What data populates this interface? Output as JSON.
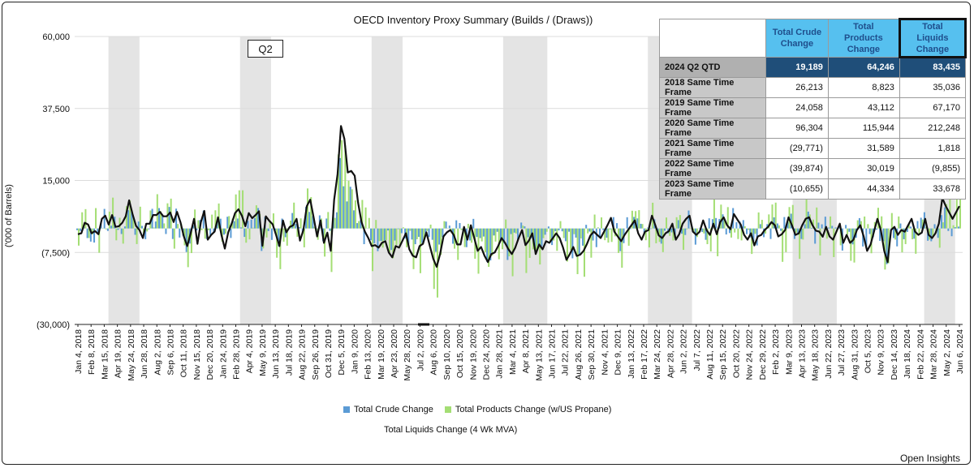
{
  "chart_data": {
    "type": "bar",
    "title": "OECD Inventory Proxy Summary (Builds / (Draws))",
    "ylabel": "('000 of Barrels)",
    "ylim": [
      -30000,
      60000
    ],
    "yticks": [
      -30000,
      -7500,
      15000,
      37500,
      60000
    ],
    "ytick_labels": [
      "(30,000)",
      "(7,500)",
      "15,000",
      "37,500",
      "60,000"
    ],
    "xtick_labels": [
      "Jan 4, 2018",
      "Feb 8, 2018",
      "Mar 15, 2018",
      "Apr 19, 2018",
      "May 24, 2018",
      "Jun 28, 2018",
      "Aug 2, 2018",
      "Sep 6, 2018",
      "Oct 11, 2018",
      "Nov 15, 2018",
      "Dec 20, 2018",
      "Jan 24, 2019",
      "Feb 28, 2019",
      "Apr 4, 2019",
      "May 9, 2019",
      "Jun 13, 2019",
      "Jul 18, 2019",
      "Aug 22, 2019",
      "Sep 26, 2019",
      "Oct 31, 2019",
      "Dec 5, 2019",
      "Jan 9, 2020",
      "Feb 13, 2020",
      "Mar 19, 2020",
      "Apr 23, 2020",
      "May 28, 2020",
      "Jul 2, 2020",
      "Aug 6, 2020",
      "Sep 10, 2020",
      "Oct 15, 2020",
      "Nov 19, 2020",
      "Dec 24, 2020",
      "Jan 28, 2021",
      "Mar 4, 2021",
      "Apr 8, 2021",
      "May 13, 2021",
      "Jun 17, 2021",
      "Jul 22, 2021",
      "Aug 26, 2021",
      "Sep 30, 2021",
      "Nov 4, 2021",
      "Dec 9, 2021",
      "Jan 13, 2022",
      "Feb 17, 2022",
      "Mar 24, 2022",
      "Apr 28, 2022",
      "Jun 2, 2022",
      "Jul 7, 2022",
      "Aug 11, 2022",
      "Sep 15, 2022",
      "Oct 20, 2022",
      "Nov 24, 2022",
      "Dec 29, 2022",
      "Feb 2, 2023",
      "Mar 9, 2023",
      "Apr 13, 2023",
      "May 18, 2023",
      "Jun 22, 2023",
      "Jul 27, 2023",
      "Aug 31, 2023",
      "Oct 5, 2023",
      "Nov 9, 2023",
      "Dec 14, 2023",
      "Jan 18, 2024",
      "Feb 22, 2024",
      "Mar 28, 2024",
      "May 2, 2024",
      "Jun 6, 2024"
    ],
    "q2_shading_label_indices": [
      [
        3,
        4
      ],
      [
        13,
        14
      ],
      [
        23,
        24
      ],
      [
        33,
        35
      ],
      [
        44,
        46
      ],
      [
        55,
        57
      ],
      [
        65,
        66
      ]
    ],
    "annotation": "Q2",
    "series": [
      {
        "name": "Total Crude Change",
        "color": "#5b9bd5",
        "approx_range": [
          -20000,
          22000
        ]
      },
      {
        "name": "Total Products Change (w/US Propane)",
        "color": "#a4de74",
        "approx_range": [
          -27000,
          40000
        ]
      },
      {
        "name": "Total Liquids Change (4 Wk MVA)",
        "color": "#111111",
        "values": [
          -1800,
          -1500,
          1800,
          1200,
          -1500,
          -800,
          -1800,
          3000,
          4000,
          1200,
          4200,
          500,
          700,
          1800,
          3800,
          8800,
          4500,
          800,
          -500,
          -3000,
          1500,
          1500,
          4200,
          4200,
          5200,
          3800,
          3800,
          5000,
          2000,
          5200,
          2000,
          -2500,
          -5500,
          -1500,
          3000,
          -4800,
          2000,
          5500,
          -3500,
          -2000,
          -1000,
          3500,
          -2000,
          -6300,
          -1200,
          1500,
          4800,
          6000,
          4000,
          700,
          4800,
          3200,
          4200,
          5400,
          -5400,
          3800,
          2400,
          1300,
          -2000,
          -5500,
          2500,
          -1200,
          500,
          1000,
          3000,
          -3800,
          -500,
          7000,
          9000,
          3500,
          -2500,
          2500,
          -4500,
          -1300,
          -7000,
          9000,
          17000,
          32000,
          28000,
          17500,
          18000,
          16500,
          8000,
          2000,
          -1000,
          -3000,
          -5500,
          -5200,
          -6000,
          -4500,
          -4000,
          -7500,
          -9000,
          -5500,
          -6000,
          -3800,
          -1500,
          -6500,
          -8500,
          -9000,
          -5500,
          -4800,
          -1200,
          -5500,
          -9500,
          -12000,
          -8000,
          -2500,
          -1200,
          -500,
          -2000,
          -5000,
          -5000,
          500,
          -3500,
          1000,
          -3000,
          -7000,
          -5800,
          -8500,
          -10500,
          -8000,
          -7500,
          -5500,
          -3000,
          -4500,
          -6500,
          -8000,
          -6000,
          -3000,
          -500,
          -5200,
          -3800,
          -1500,
          -8000,
          -5000,
          -6500,
          -4000,
          -4500,
          -3000,
          -1500,
          -3000,
          -6000,
          -9800,
          -8000,
          -5800,
          -8600,
          -8200,
          -7000,
          -4800,
          -2200,
          -1000,
          -2000,
          -3000,
          -1000,
          1000,
          3300,
          -1000,
          -2500,
          -4000,
          -2000,
          -500,
          1000,
          2500,
          -1500,
          -3500,
          -1000,
          -500,
          4000,
          1000,
          -2200,
          -3000,
          -1500,
          -800,
          1500,
          -3500,
          -1800,
          1500,
          3000,
          4000,
          -1000,
          -2000,
          -1000,
          2500,
          -500,
          -2000,
          1500,
          -1800,
          2000,
          3500,
          1000,
          -200,
          4500,
          2800,
          1200,
          -2000,
          -3500,
          -1500,
          -5300,
          -2500,
          -2000,
          -500,
          500,
          2000,
          1000,
          -2500,
          -1800,
          -500,
          3500,
          1000,
          -2000,
          -1500,
          1000,
          3000,
          3500,
          1000,
          -700,
          -1000,
          -2600,
          500,
          -2500,
          -3500,
          -1000,
          1500,
          -4500,
          -2000,
          -4500,
          -3500,
          -500,
          1000,
          -2500,
          -7000,
          -5000,
          -1000,
          3000,
          -500,
          -7000,
          -10500,
          -500,
          500,
          -2000,
          -500,
          -1000,
          1000,
          3000,
          -1000,
          -2000,
          -1300,
          3000,
          -2000,
          -3000,
          -1500,
          1500,
          9500,
          7000,
          5000,
          3000,
          5000,
          7000
        ]
      }
    ]
  },
  "summary_table": {
    "headers": [
      "Total Crude Change",
      "Total Products Change",
      "Total Liquids Change"
    ],
    "rows": [
      {
        "label": "2024 Q2 QTD",
        "crude": "19,189",
        "products": "64,246",
        "liquids": "83,435"
      },
      {
        "label": "2018 Same Time Frame",
        "crude": "26,213",
        "products": "8,823",
        "liquids": "35,036"
      },
      {
        "label": "2019 Same Time Frame",
        "crude": "24,058",
        "products": "43,112",
        "liquids": "67,170"
      },
      {
        "label": "2020 Same Time Frame",
        "crude": "96,304",
        "products": "115,944",
        "liquids": "212,248"
      },
      {
        "label": "2021 Same Time Frame",
        "crude": "(29,771)",
        "products": "31,589",
        "liquids": "1,818"
      },
      {
        "label": "2022 Same Time Frame",
        "crude": "(39,874)",
        "products": "30,019",
        "liquids": "(9,855)"
      },
      {
        "label": "2023 Same Time Frame",
        "crude": "(10,655)",
        "products": "44,334",
        "liquids": "33,678"
      }
    ]
  },
  "legend": {
    "crude": "Total Crude Change",
    "products": "Total Products Change (w/US Propane)",
    "liquids": "Total Liquids Change (4 Wk MVA)"
  },
  "credit": "Open Insights",
  "colors": {
    "crude": "#5b9bd5",
    "products": "#a4de74",
    "line": "#111111",
    "shade": "#e4e4e4",
    "table_accent": "#56c0ef",
    "table_dark": "#1f4e79"
  }
}
